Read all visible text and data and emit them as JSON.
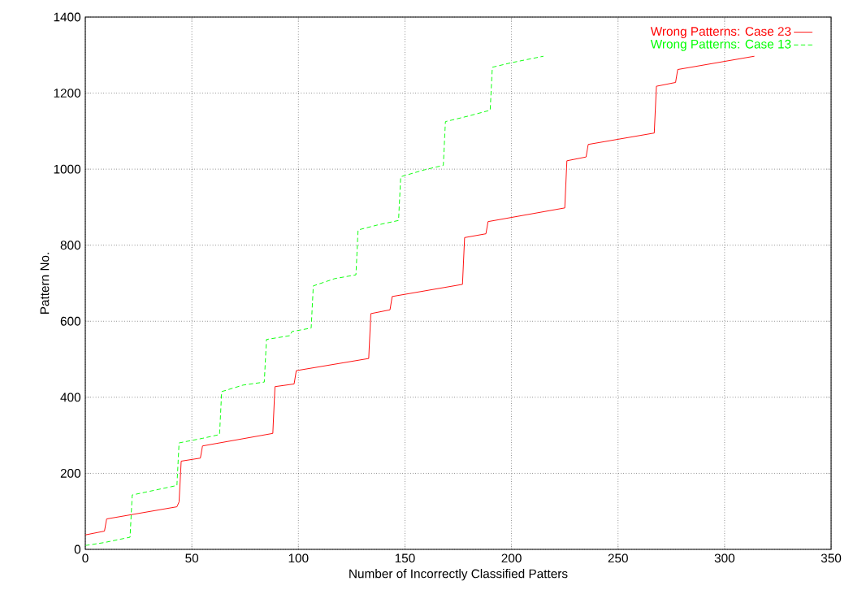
{
  "chart_data": {
    "type": "line",
    "xlabel": "Number of Incorrectly Classified Patters",
    "ylabel": "Pattern No.",
    "xlim": [
      0,
      350
    ],
    "ylim": [
      0,
      1400
    ],
    "xticks": [
      0,
      50,
      100,
      150,
      200,
      250,
      300,
      350
    ],
    "yticks": [
      0,
      200,
      400,
      600,
      800,
      1000,
      1200,
      1400
    ],
    "grid": true,
    "legend": "top right",
    "series": [
      {
        "name": "Wrong Patterns: Case 23",
        "color": "#ff0000",
        "line_style": "solid",
        "x": [
          0,
          9,
          10,
          43,
          44,
          45,
          54,
          55,
          88,
          89,
          98,
          99,
          133,
          134,
          143,
          144,
          177,
          178,
          188,
          189,
          225,
          226,
          235,
          236,
          267,
          268,
          277,
          278,
          314
        ],
        "values": [
          38,
          48,
          80,
          112,
          125,
          232,
          240,
          272,
          305,
          428,
          435,
          470,
          502,
          620,
          630,
          665,
          697,
          820,
          830,
          862,
          898,
          1022,
          1032,
          1065,
          1095,
          1218,
          1228,
          1262,
          1297
        ]
      },
      {
        "name": "Wrong Patterns: Case 13",
        "color": "#00ff00",
        "line_style": "dashed",
        "x": [
          0,
          9,
          21,
          22,
          43,
          44,
          55,
          63,
          64,
          74,
          84,
          85,
          96,
          97,
          106,
          107,
          117,
          127,
          128,
          137,
          147,
          148,
          159,
          168,
          169,
          180,
          190,
          191,
          200,
          215
        ],
        "values": [
          10,
          18,
          32,
          143,
          168,
          280,
          292,
          302,
          415,
          432,
          440,
          552,
          562,
          573,
          582,
          693,
          712,
          722,
          840,
          853,
          865,
          980,
          998,
          1010,
          1125,
          1140,
          1155,
          1268,
          1280,
          1297
        ]
      }
    ]
  }
}
